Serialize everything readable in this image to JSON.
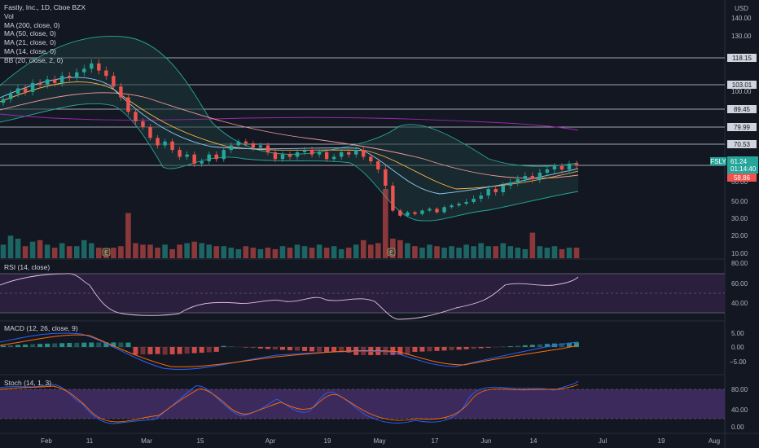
{
  "header": {
    "title": "Fastly, Inc., 1D, Cboe BZX",
    "legend": [
      "Vol",
      "MA (200, close, 0)",
      "MA (50, close, 0)",
      "MA (21, close, 0)",
      "MA (14, close, 0)",
      "BB (20, close, 2, 0)"
    ],
    "currency": "USD"
  },
  "price_axis": {
    "ticks": [
      "140.00",
      "130.00",
      "110.00",
      "100.00",
      "60.00",
      "50.00",
      "40.00",
      "30.00",
      "20.00",
      "10.00"
    ],
    "levels": [
      "118.15",
      "103.01",
      "89.45",
      "79.99",
      "70.53"
    ],
    "current": {
      "symbol": "FSLY",
      "price": "61.24",
      "countdown": "01:14:40"
    },
    "secondary": "58.86"
  },
  "rsi_pane": {
    "label": "RSI (14, close)",
    "ticks": [
      "80.00",
      "60.00",
      "40.00"
    ]
  },
  "macd_pane": {
    "label": "MACD (12, 26, close, 9)",
    "ticks": [
      "5.00",
      "0.00",
      "−5.00"
    ]
  },
  "stoch_pane": {
    "label": "Stoch (14, 1, 3)",
    "ticks": [
      "80.00",
      "40.00",
      "0.00"
    ]
  },
  "time_axis": {
    "ticks": [
      "Feb",
      "11",
      "Mar",
      "15",
      "Apr",
      "19",
      "May",
      "17",
      "Jun",
      "14",
      "Jul",
      "19",
      "Aug"
    ]
  },
  "colors": {
    "up": "#26a69a",
    "down": "#ef5350",
    "background": "#131722",
    "rsi_band": "#2a1f3d",
    "stoch_band": "#3d2a5c",
    "ma_blue": "#2962ff",
    "ma_orange": "#ff6d00"
  },
  "chart_data": {
    "type": "candlestick",
    "symbol": "FSLY",
    "close": [
      95,
      98,
      101,
      99,
      104,
      103,
      106,
      104,
      108,
      107,
      110,
      112,
      115,
      111,
      108,
      102,
      96,
      88,
      83,
      80,
      74,
      70,
      72,
      68,
      65,
      66,
      62,
      63,
      66,
      64,
      68,
      70,
      72,
      71,
      69,
      70,
      67,
      64,
      66,
      65,
      67,
      68,
      66,
      67,
      64,
      65,
      67,
      66,
      68,
      65,
      63,
      60,
      55,
      45,
      42,
      44,
      43,
      45,
      46,
      44,
      47,
      48,
      49,
      50,
      51,
      52,
      54,
      53,
      55,
      56,
      57,
      58,
      57,
      59,
      60,
      61,
      60,
      62,
      61.24
    ],
    "volume": [
      9,
      15,
      13,
      8,
      11,
      12,
      9,
      7,
      10,
      8,
      8,
      12,
      10,
      7,
      6,
      7,
      8,
      30,
      10,
      9,
      9,
      7,
      9,
      6,
      9,
      10,
      11,
      10,
      9,
      8,
      8,
      7,
      6,
      8,
      7,
      6,
      7,
      6,
      8,
      7,
      9,
      8,
      7,
      9,
      7,
      8,
      6,
      7,
      9,
      12,
      9,
      10,
      46,
      13,
      12,
      10,
      8,
      7,
      9,
      8,
      7,
      8,
      7,
      9,
      8,
      10,
      8,
      8,
      10,
      8,
      7,
      6,
      17,
      8,
      7,
      8,
      6,
      7,
      7
    ],
    "markers": [
      "E",
      "E"
    ]
  }
}
